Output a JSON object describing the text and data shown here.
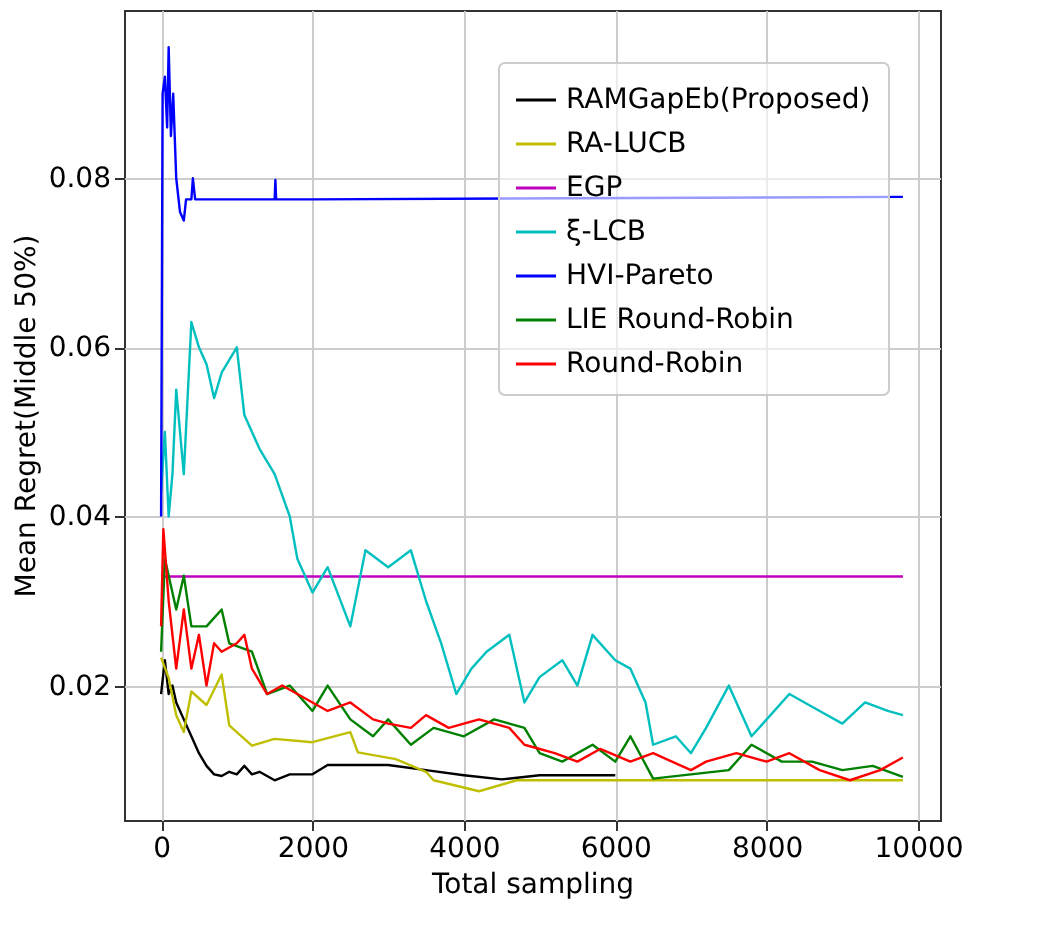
{
  "chart_data": {
    "type": "line",
    "xlabel": "Total sampling",
    "ylabel": "Mean Regret(Middle 50%)",
    "xlim": [
      -490,
      10290
    ],
    "ylim": [
      0.0041,
      0.0999
    ],
    "xticks": [
      0,
      2000,
      4000,
      6000,
      8000,
      10000
    ],
    "yticks": [
      0.02,
      0.04,
      0.06,
      0.08
    ],
    "grid": true,
    "legend": "top right",
    "series": [
      {
        "name": "RAMGapEb(Proposed)",
        "color": "#000000",
        "x": [
          0,
          50,
          100,
          150,
          200,
          300,
          400,
          500,
          600,
          700,
          800,
          900,
          1000,
          1100,
          1200,
          1300,
          1500,
          1700,
          2000,
          2200,
          2500,
          3000,
          3500,
          4000,
          4500,
          5000,
          5500,
          6000
        ],
        "values": [
          0.019,
          0.023,
          0.019,
          0.02,
          0.018,
          0.016,
          0.014,
          0.012,
          0.0105,
          0.0095,
          0.0093,
          0.0098,
          0.0095,
          0.0105,
          0.0095,
          0.0098,
          0.0088,
          0.0095,
          0.0095,
          0.0106,
          0.0106,
          0.0106,
          0.01,
          0.0094,
          0.0089,
          0.0094,
          0.0094,
          0.0094
        ]
      },
      {
        "name": "RA-LUCB",
        "color": "#bfbf00",
        "x": [
          0,
          100,
          200,
          300,
          400,
          600,
          800,
          900,
          1000,
          1200,
          1500,
          2000,
          2500,
          2600,
          3100,
          3500,
          3600,
          4200,
          4700,
          9800
        ],
        "values": [
          0.0233,
          0.0209,
          0.0165,
          0.0145,
          0.0193,
          0.0177,
          0.0213,
          0.0153,
          0.0145,
          0.0129,
          0.0137,
          0.0133,
          0.0145,
          0.0121,
          0.0113,
          0.0098,
          0.0088,
          0.0075,
          0.0088,
          0.0088
        ]
      },
      {
        "name": "EGP",
        "color": "#bf00bf",
        "x": [
          0,
          9800
        ],
        "values": [
          0.0329,
          0.0329
        ]
      },
      {
        "name": "ξ-LCB",
        "color": "#00bfbf",
        "x": [
          0,
          50,
          100,
          150,
          200,
          300,
          400,
          500,
          600,
          700,
          800,
          1000,
          1100,
          1300,
          1500,
          1700,
          1800,
          2000,
          2200,
          2500,
          2700,
          3000,
          3300,
          3500,
          3700,
          3900,
          4100,
          4300,
          4600,
          4800,
          5000,
          5300,
          5500,
          5700,
          6000,
          6200,
          6400,
          6500,
          6800,
          7000,
          7200,
          7500,
          7800,
          8000,
          8300,
          8700,
          9000,
          9300,
          9600,
          9800
        ],
        "values": [
          0.043,
          0.05,
          0.04,
          0.045,
          0.055,
          0.045,
          0.063,
          0.06,
          0.058,
          0.054,
          0.057,
          0.06,
          0.052,
          0.048,
          0.045,
          0.04,
          0.035,
          0.031,
          0.034,
          0.027,
          0.036,
          0.034,
          0.036,
          0.03,
          0.025,
          0.019,
          0.022,
          0.024,
          0.026,
          0.018,
          0.021,
          0.023,
          0.02,
          0.026,
          0.023,
          0.022,
          0.018,
          0.013,
          0.014,
          0.012,
          0.015,
          0.02,
          0.014,
          0.016,
          0.019,
          0.017,
          0.0155,
          0.018,
          0.017,
          0.0165
        ]
      },
      {
        "name": "HVI-Pareto",
        "color": "#0000ff",
        "x": [
          0,
          20,
          50,
          80,
          100,
          130,
          160,
          200,
          250,
          300,
          330,
          400,
          420,
          450,
          1500,
          1510,
          1520,
          2000,
          9800
        ],
        "values": [
          0.04,
          0.09,
          0.092,
          0.086,
          0.0955,
          0.085,
          0.09,
          0.08,
          0.076,
          0.075,
          0.0775,
          0.0775,
          0.08,
          0.0775,
          0.0775,
          0.0798,
          0.0775,
          0.0775,
          0.0778
        ]
      },
      {
        "name": "LIE Round-Robin",
        "color": "#008000",
        "x": [
          0,
          50,
          200,
          300,
          400,
          600,
          800,
          900,
          1200,
          1400,
          1700,
          2000,
          2200,
          2500,
          2800,
          3000,
          3300,
          3600,
          4000,
          4400,
          4800,
          5000,
          5300,
          5700,
          6000,
          6200,
          6500,
          7000,
          7500,
          7800,
          8200,
          8600,
          9000,
          9400,
          9800
        ],
        "values": [
          0.024,
          0.035,
          0.029,
          0.033,
          0.027,
          0.027,
          0.029,
          0.025,
          0.024,
          0.019,
          0.02,
          0.017,
          0.02,
          0.016,
          0.014,
          0.016,
          0.013,
          0.015,
          0.014,
          0.016,
          0.015,
          0.012,
          0.011,
          0.013,
          0.011,
          0.014,
          0.009,
          0.0095,
          0.01,
          0.013,
          0.011,
          0.011,
          0.01,
          0.0105,
          0.0092
        ]
      },
      {
        "name": "Round-Robin",
        "color": "#ff0000",
        "x": [
          0,
          30,
          100,
          200,
          300,
          400,
          500,
          600,
          700,
          800,
          1000,
          1100,
          1200,
          1400,
          1600,
          1800,
          2000,
          2200,
          2500,
          2800,
          3000,
          3300,
          3500,
          3800,
          4200,
          4600,
          4800,
          5200,
          5500,
          5800,
          6200,
          6500,
          7000,
          7200,
          7600,
          8000,
          8300,
          8700,
          9100,
          9500,
          9800
        ],
        "values": [
          0.027,
          0.0385,
          0.03,
          0.022,
          0.029,
          0.022,
          0.026,
          0.02,
          0.025,
          0.024,
          0.025,
          0.026,
          0.022,
          0.019,
          0.02,
          0.019,
          0.018,
          0.017,
          0.018,
          0.016,
          0.0155,
          0.015,
          0.0165,
          0.015,
          0.016,
          0.015,
          0.013,
          0.012,
          0.011,
          0.0125,
          0.011,
          0.012,
          0.01,
          0.011,
          0.012,
          0.011,
          0.012,
          0.01,
          0.0088,
          0.01,
          0.0115
        ]
      }
    ]
  }
}
